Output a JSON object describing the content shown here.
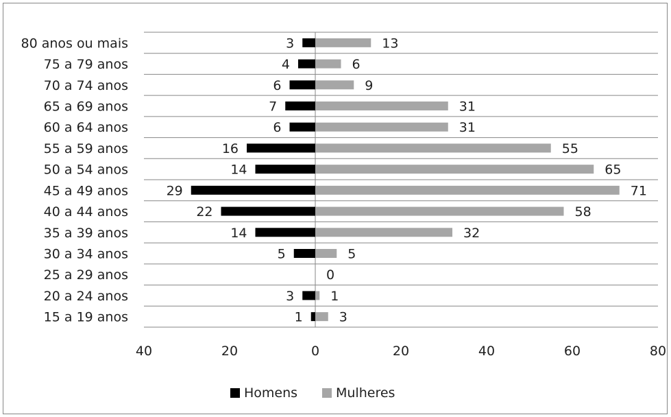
{
  "chart_data": {
    "type": "bar",
    "orientation": "horizontal",
    "categories": [
      "80 anos ou mais",
      "75 a 79 anos",
      "70 a 74 anos",
      "65 a 69 anos",
      "60 a 64 anos",
      "55 a 59 anos",
      "50 a 54 anos",
      "45 a 49 anos",
      "40 a 44 anos",
      "35 a 39 anos",
      "30 a 34 anos",
      "25 a 29 anos",
      "20 a 24 anos",
      "15 a 19 anos"
    ],
    "series": [
      {
        "name": "Homens",
        "color": "#000000",
        "values": [
          3,
          4,
          6,
          7,
          6,
          16,
          14,
          29,
          22,
          14,
          5,
          0,
          3,
          1
        ],
        "labels": [
          "3",
          "4",
          "6",
          "7",
          "6",
          "16",
          "14",
          "29",
          "22",
          "14",
          "5",
          "",
          "3",
          "1"
        ]
      },
      {
        "name": "Mulheres",
        "color": "#a6a6a6",
        "values": [
          13,
          6,
          9,
          31,
          31,
          55,
          65,
          71,
          58,
          32,
          5,
          0,
          1,
          3
        ],
        "labels": [
          "13",
          "6",
          "9",
          "31",
          "31",
          "55",
          "65",
          "71",
          "58",
          "32",
          "5",
          "0",
          "1",
          "3"
        ]
      }
    ],
    "xlim": [
      -40,
      80
    ],
    "xticks": [
      -40,
      -20,
      0,
      20,
      40,
      60,
      80
    ],
    "xtick_labels": [
      "40",
      "20",
      "0",
      "20",
      "40",
      "60",
      "80"
    ],
    "grid": "horizontal",
    "legend_position": "bottom",
    "title": "",
    "xlabel": "",
    "ylabel": ""
  }
}
